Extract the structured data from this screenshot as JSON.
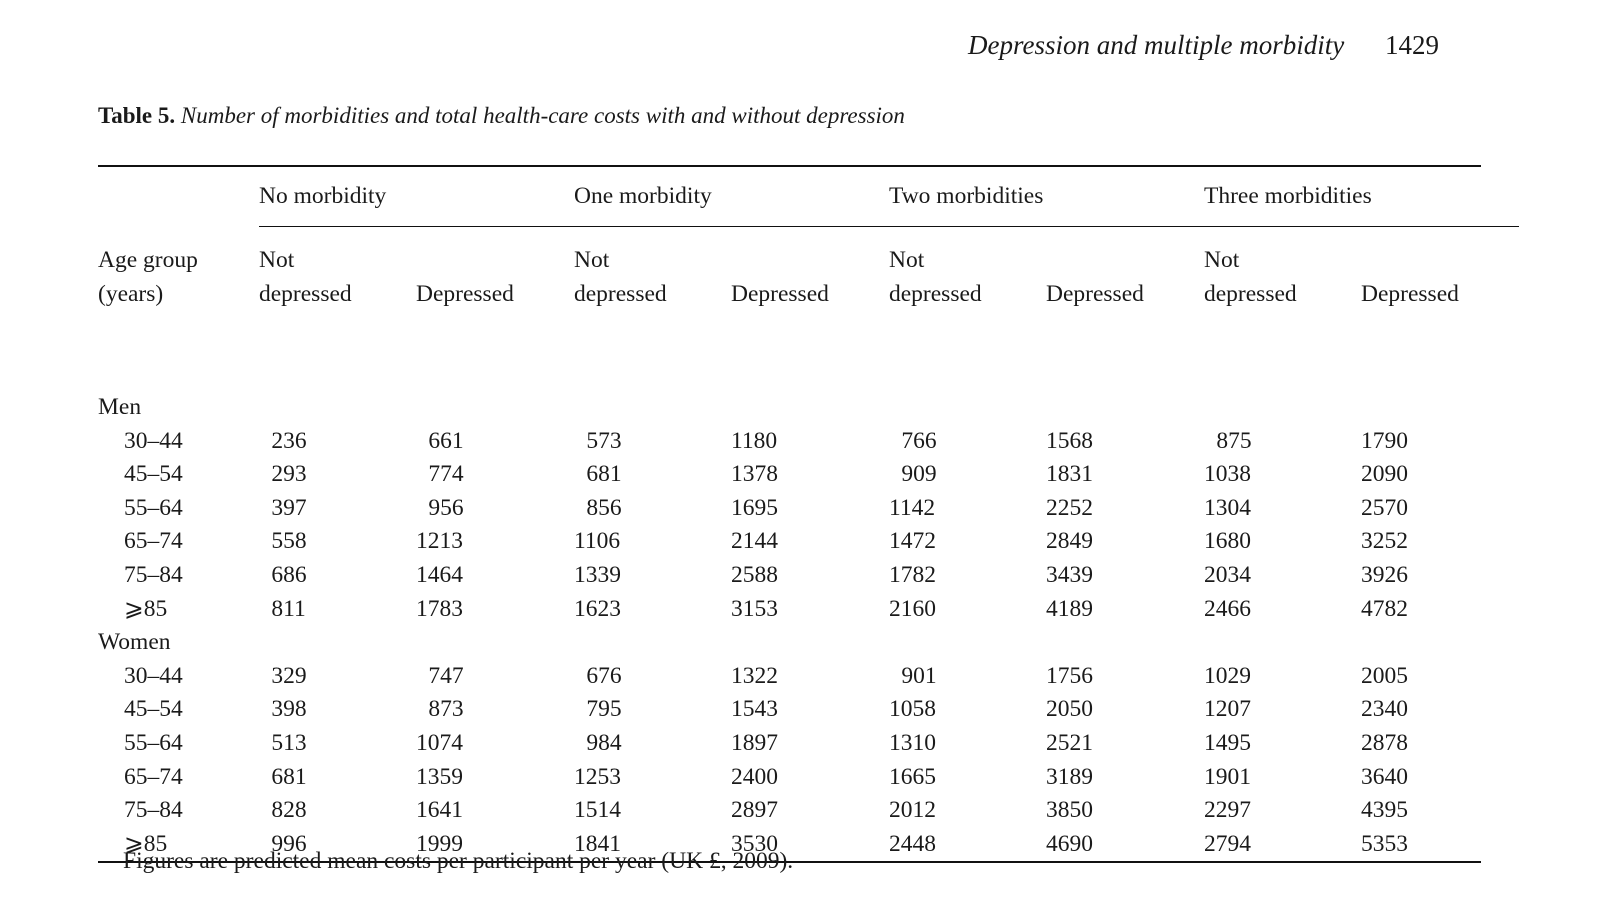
{
  "running_head": {
    "title": "Depression and multiple morbidity",
    "page": "1429"
  },
  "caption": {
    "label": "Table 5.",
    "text": "Number of morbidities and total health-care costs with and without depression"
  },
  "table": {
    "age_header_line1": "Age group",
    "age_header_line2": "(years)",
    "groups": [
      "No morbidity",
      "One morbidity",
      "Two morbidities",
      "Three morbidities"
    ],
    "not_depressed_line1": "Not",
    "not_depressed_line2": "depressed",
    "depressed_label": "Depressed",
    "sections": [
      {
        "label": "Men",
        "rows": [
          {
            "age": "30–44",
            "values": [
              "236",
              "661",
              "573",
              "1180",
              "766",
              "1568",
              "875",
              "1790"
            ]
          },
          {
            "age": "45–54",
            "values": [
              "293",
              "774",
              "681",
              "1378",
              "909",
              "1831",
              "1038",
              "2090"
            ]
          },
          {
            "age": "55–64",
            "values": [
              "397",
              "956",
              "856",
              "1695",
              "1142",
              "2252",
              "1304",
              "2570"
            ]
          },
          {
            "age": "65–74",
            "values": [
              "558",
              "1213",
              "1106",
              "2144",
              "1472",
              "2849",
              "1680",
              "3252"
            ]
          },
          {
            "age": "75–84",
            "values": [
              "686",
              "1464",
              "1339",
              "2588",
              "1782",
              "3439",
              "2034",
              "3926"
            ]
          },
          {
            "age": "⩾85",
            "values": [
              "811",
              "1783",
              "1623",
              "3153",
              "2160",
              "4189",
              "2466",
              "4782"
            ]
          }
        ]
      },
      {
        "label": "Women",
        "rows": [
          {
            "age": "30–44",
            "values": [
              "329",
              "747",
              "676",
              "1322",
              "901",
              "1756",
              "1029",
              "2005"
            ]
          },
          {
            "age": "45–54",
            "values": [
              "398",
              "873",
              "795",
              "1543",
              "1058",
              "2050",
              "1207",
              "2340"
            ]
          },
          {
            "age": "55–64",
            "values": [
              "513",
              "1074",
              "984",
              "1897",
              "1310",
              "2521",
              "1495",
              "2878"
            ]
          },
          {
            "age": "65–74",
            "values": [
              "681",
              "1359",
              "1253",
              "2400",
              "1665",
              "3189",
              "1901",
              "3640"
            ]
          },
          {
            "age": "75–84",
            "values": [
              "828",
              "1641",
              "1514",
              "2897",
              "2012",
              "3850",
              "2297",
              "4395"
            ]
          },
          {
            "age": "⩾85",
            "values": [
              "996",
              "1999",
              "1841",
              "3530",
              "2448",
              "4690",
              "2794",
              "5353"
            ]
          }
        ]
      }
    ]
  },
  "note": "Figures are predicted mean costs per participant per year (UK £, 2009)."
}
